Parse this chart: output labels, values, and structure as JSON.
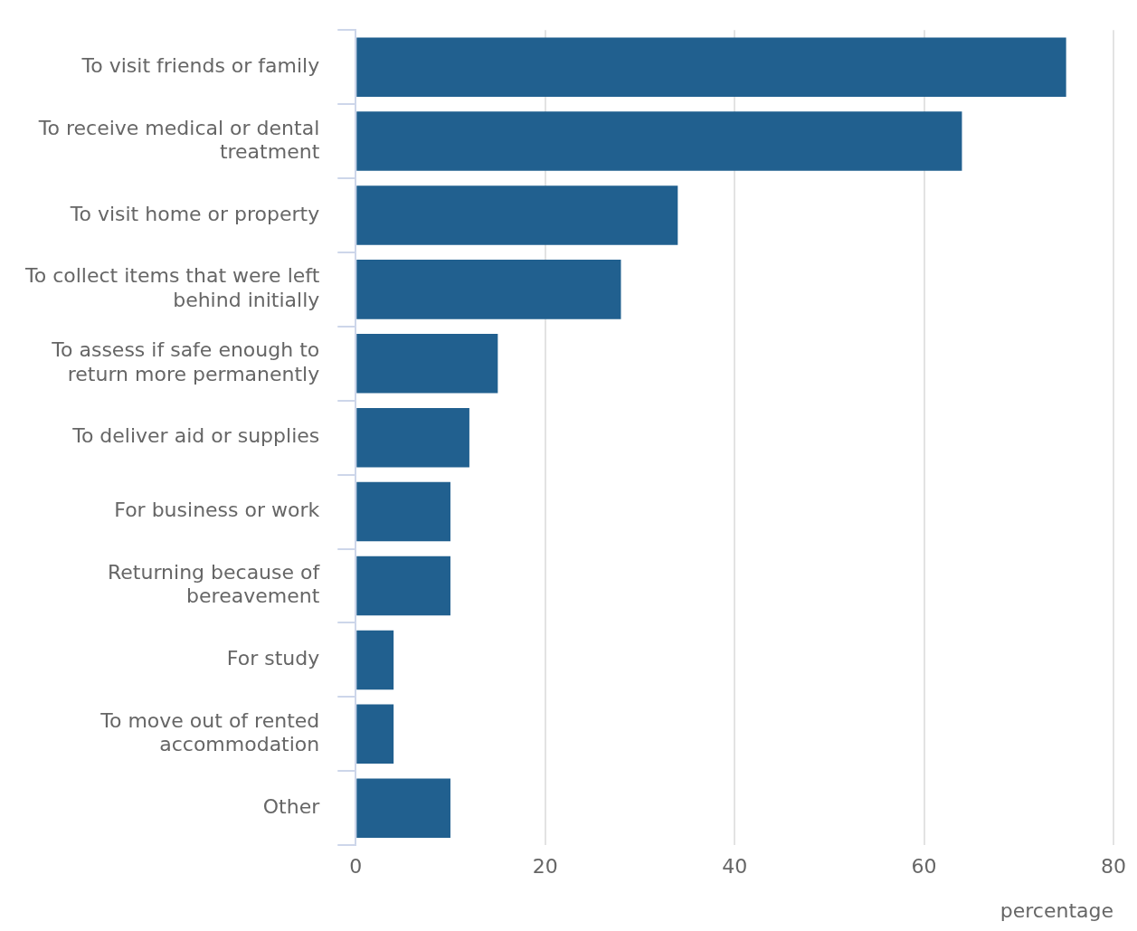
{
  "chart_data": {
    "type": "bar",
    "orientation": "horizontal",
    "xlabel": "percentage",
    "categories": [
      "To visit friends or family",
      "To receive medical or dental treatment",
      "To visit home or property",
      "To collect items that were left behind initially",
      "To assess if safe enough to return more permanently",
      "To deliver aid or supplies",
      "For business or work",
      "Returning because of bereavement",
      "For study",
      "To move out of rented accommodation",
      "Other"
    ],
    "values": [
      75,
      64,
      34,
      28,
      15,
      12,
      10,
      10,
      4,
      4,
      10
    ],
    "color": "#21608f",
    "xlim": [
      0,
      80
    ],
    "xticks": [
      0,
      20,
      40,
      60,
      80
    ],
    "grid": "x",
    "legend": false
  }
}
